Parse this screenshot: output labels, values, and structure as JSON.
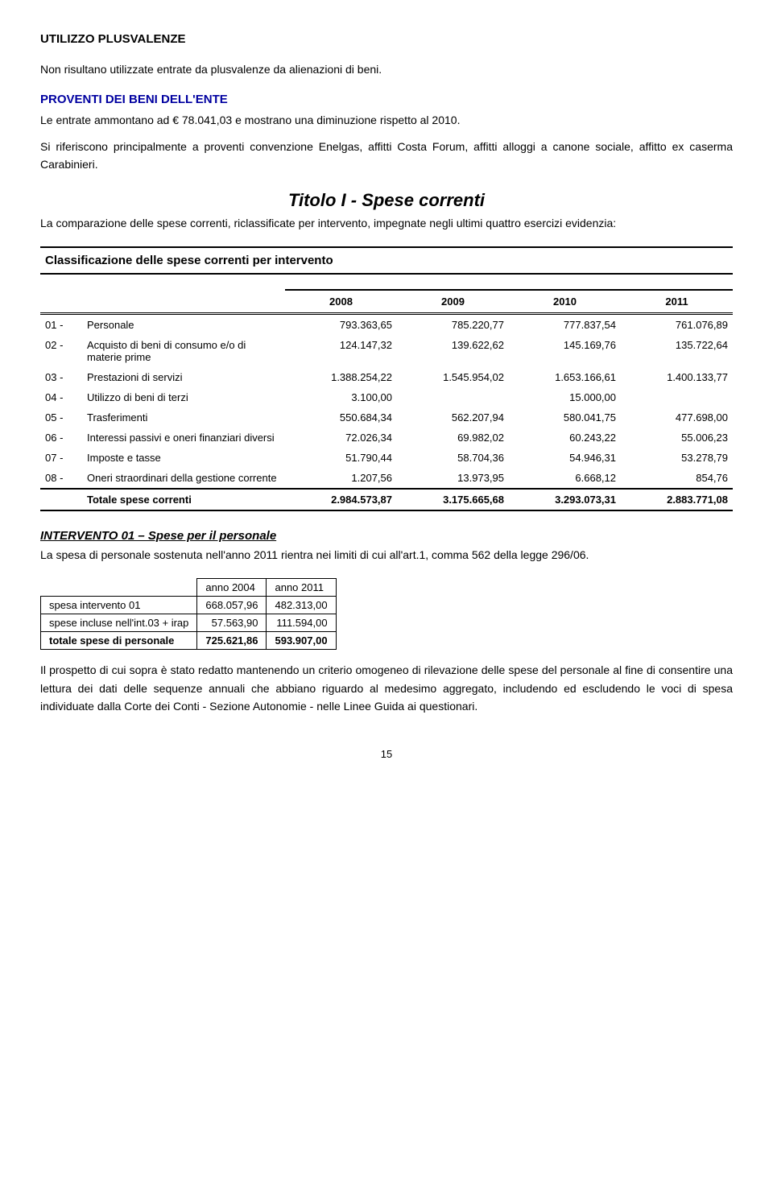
{
  "section1": {
    "title": "UTILIZZO PLUSVALENZE",
    "text": "Non risultano utilizzate entrate da plusvalenze da alienazioni di beni."
  },
  "section2": {
    "title": "PROVENTI DEI BENI DELL'ENTE",
    "text1": "Le entrate ammontano ad € 78.041,03 e mostrano una diminuzione  rispetto al 2010.",
    "text2": "Si riferiscono principalmente a proventi convenzione Enelgas, affitti Costa Forum, affitti alloggi a canone sociale, affitto ex caserma Carabinieri."
  },
  "titolo": {
    "heading": "Titolo I - Spese correnti",
    "intro": "La comparazione delle spese correnti, riclassificate per intervento, impegnate negli ultimi quattro esercizi evidenzia:"
  },
  "classification": {
    "header": "Classificazione delle spese correnti per intervento",
    "years": [
      "2008",
      "2009",
      "2010",
      "2011"
    ],
    "rows": [
      {
        "code": "01 -",
        "label": "Personale",
        "vals": [
          "793.363,65",
          "785.220,77",
          "777.837,54",
          "761.076,89"
        ]
      },
      {
        "code": "02 -",
        "label": "Acquisto di beni di consumo e/o di materie prime",
        "vals": [
          "124.147,32",
          "139.622,62",
          "145.169,76",
          "135.722,64"
        ]
      },
      {
        "code": "03 -",
        "label": "Prestazioni di servizi",
        "vals": [
          "1.388.254,22",
          "1.545.954,02",
          "1.653.166,61",
          "1.400.133,77"
        ]
      },
      {
        "code": "04 -",
        "label": "Utilizzo di beni di terzi",
        "vals": [
          "3.100,00",
          "",
          "15.000,00",
          ""
        ]
      },
      {
        "code": "05 -",
        "label": "Trasferimenti",
        "vals": [
          "550.684,34",
          "562.207,94",
          "580.041,75",
          "477.698,00"
        ]
      },
      {
        "code": "06 -",
        "label": "Interessi passivi e oneri finanziari diversi",
        "vals": [
          "72.026,34",
          "69.982,02",
          "60.243,22",
          "55.006,23"
        ]
      },
      {
        "code": "07 -",
        "label": "Imposte e tasse",
        "vals": [
          "51.790,44",
          "58.704,36",
          "54.946,31",
          "53.278,79"
        ]
      },
      {
        "code": "08 -",
        "label": "Oneri straordinari della gestione corrente",
        "vals": [
          "1.207,56",
          "13.973,95",
          "6.668,12",
          "854,76"
        ]
      }
    ],
    "total": {
      "label": "Totale spese correnti",
      "vals": [
        "2.984.573,87",
        "3.175.665,68",
        "3.293.073,31",
        "2.883.771,08"
      ]
    }
  },
  "intervento": {
    "title": "INTERVENTO 01 – Spese per il personale",
    "text": "La spesa di personale sostenuta nell'anno 2011 rientra nei limiti di cui all'art.1, comma 562 della legge 296/06."
  },
  "small_table": {
    "headers": [
      "",
      "anno 2004",
      "anno 2011"
    ],
    "rows": [
      {
        "label": "spesa intervento 01",
        "vals": [
          "668.057,96",
          "482.313,00"
        ]
      },
      {
        "label": "spese incluse nell'int.03 + irap",
        "vals": [
          "57.563,90",
          "111.594,00"
        ]
      }
    ],
    "total": {
      "label": "totale spese di personale",
      "vals": [
        "725.621,86",
        "593.907,00"
      ]
    }
  },
  "closing": "Il prospetto di cui sopra è stato redatto mantenendo un criterio omogeneo di rilevazione delle spese del personale al fine di consentire una lettura dei dati delle sequenze annuali che abbiano riguardo al medesimo aggregato, includendo ed escludendo le voci di spesa individuate dalla Corte dei Conti - Sezione Autonomie - nelle Linee Guida ai questionari.",
  "page_number": "15",
  "style": {
    "blue": "#0000a0",
    "font_body": 14,
    "font_table": 13,
    "background": "#ffffff"
  }
}
